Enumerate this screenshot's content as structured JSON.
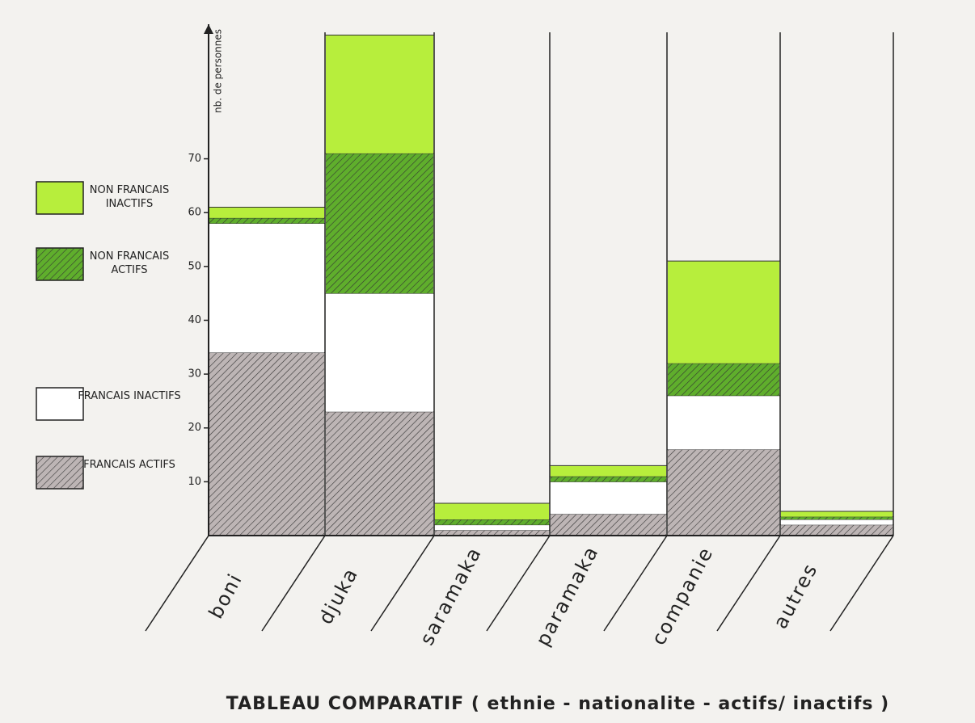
{
  "chart_data": {
    "type": "stacked-bar",
    "title": "TABLEAU COMPARATIF ( ethnie - nationalite - actifs/ inactifs )",
    "y_label": "nb. de personnes",
    "categories": [
      "boni",
      "djuka",
      "saramaka",
      "paramaka",
      "companie",
      "autres"
    ],
    "series": [
      {
        "name": "FRANCAIS ACTIFS",
        "color": "#bdb5b5",
        "hatched": true,
        "values": [
          34,
          23,
          1,
          4,
          16,
          2
        ]
      },
      {
        "name": "FRANCAIS INACTIFS",
        "color": "#ffffff",
        "hatched": false,
        "values": [
          24,
          22,
          1,
          6,
          10,
          1
        ]
      },
      {
        "name": "NON FRANCAIS ACTIFS",
        "color": "#5fae2c",
        "hatched": true,
        "values": [
          1,
          26,
          1,
          1,
          6,
          0.5
        ]
      },
      {
        "name": "NON FRANCAIS INACTIFS",
        "color": "#b7ee3c",
        "hatched": false,
        "values": [
          2,
          22,
          3,
          2,
          19,
          1
        ]
      }
    ],
    "ylim": [
      0,
      95
    ],
    "yticks": [
      10,
      20,
      30,
      40,
      50,
      60,
      70
    ]
  }
}
